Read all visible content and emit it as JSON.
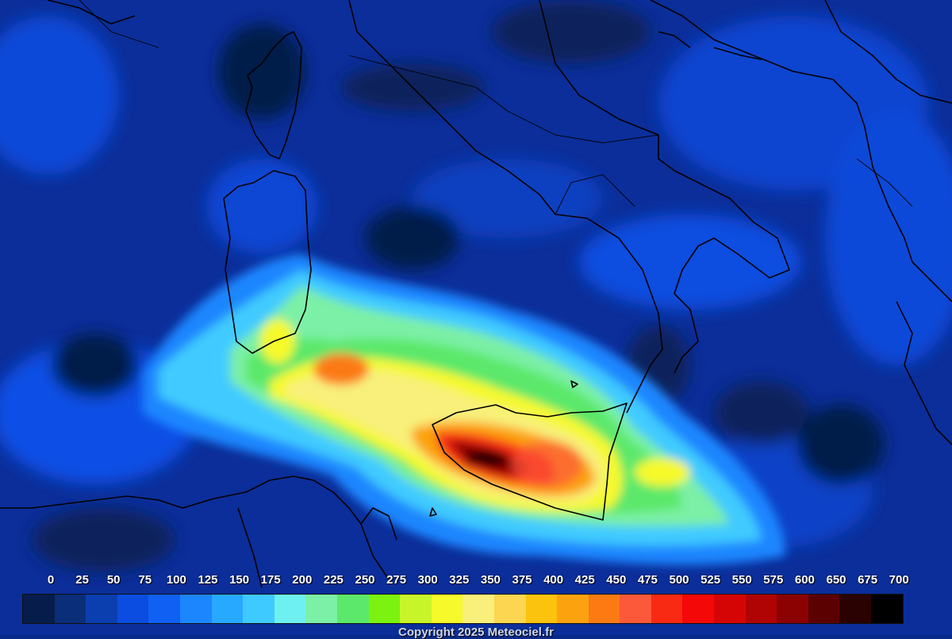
{
  "legend": {
    "ticks": [
      "0",
      "25",
      "50",
      "75",
      "100",
      "125",
      "150",
      "175",
      "200",
      "225",
      "250",
      "275",
      "300",
      "325",
      "350",
      "375",
      "400",
      "425",
      "450",
      "475",
      "500",
      "525",
      "550",
      "575",
      "600",
      "650",
      "675",
      "700"
    ],
    "colors": [
      "#061c4a",
      "#0a2e78",
      "#0b3fb0",
      "#0a4de0",
      "#1060f4",
      "#1c86ff",
      "#27a9ff",
      "#3fcaff",
      "#6ef0f0",
      "#7cf0a6",
      "#5ce86a",
      "#7cf210",
      "#c8f52a",
      "#f6f92a",
      "#f8f07a",
      "#fcd650",
      "#fbc20e",
      "#fca20f",
      "#fc7a12",
      "#fc583a",
      "#f82a14",
      "#f40808",
      "#d60505",
      "#b00303",
      "#8c0202",
      "#5c0101",
      "#2a0202",
      "#000000"
    ]
  },
  "copyright": "Copyright 2025 Meteociel.fr",
  "map": {
    "background_color": "#0b2e9a",
    "coastline_color": "#000000",
    "peak_region": "Sicily",
    "peak_color": "#1a0000"
  }
}
